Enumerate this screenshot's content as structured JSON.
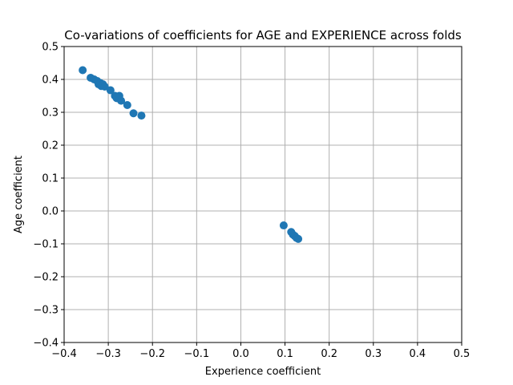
{
  "chart_data": {
    "type": "scatter",
    "title": "Co-variations of coefficients for AGE and EXPERIENCE across folds",
    "xlabel": "Experience coefficient",
    "ylabel": "Age coefficient",
    "xlim": [
      -0.4,
      0.5
    ],
    "ylim": [
      -0.4,
      0.5
    ],
    "xticks": [
      -0.4,
      -0.3,
      -0.2,
      -0.1,
      0.0,
      0.1,
      0.2,
      0.3,
      0.4,
      0.5
    ],
    "yticks": [
      -0.4,
      -0.3,
      -0.2,
      -0.1,
      0.0,
      0.1,
      0.2,
      0.3,
      0.4,
      0.5
    ],
    "xtick_labels": [
      "−0.4",
      "−0.3",
      "−0.2",
      "−0.1",
      "0.0",
      "0.1",
      "0.2",
      "0.3",
      "0.4",
      "0.5"
    ],
    "ytick_labels": [
      "−0.4",
      "−0.3",
      "−0.2",
      "−0.1",
      "0.0",
      "0.1",
      "0.2",
      "0.3",
      "0.4",
      "0.5"
    ],
    "grid": true,
    "marker_color": "#1f77b4",
    "points": [
      {
        "x": -0.358,
        "y": 0.428
      },
      {
        "x": -0.34,
        "y": 0.405
      },
      {
        "x": -0.332,
        "y": 0.4
      },
      {
        "x": -0.325,
        "y": 0.395
      },
      {
        "x": -0.322,
        "y": 0.385
      },
      {
        "x": -0.318,
        "y": 0.389
      },
      {
        "x": -0.316,
        "y": 0.38
      },
      {
        "x": -0.312,
        "y": 0.385
      },
      {
        "x": -0.308,
        "y": 0.378
      },
      {
        "x": -0.295,
        "y": 0.367
      },
      {
        "x": -0.285,
        "y": 0.35
      },
      {
        "x": -0.281,
        "y": 0.343
      },
      {
        "x": -0.275,
        "y": 0.35
      },
      {
        "x": -0.271,
        "y": 0.335
      },
      {
        "x": -0.257,
        "y": 0.322
      },
      {
        "x": -0.243,
        "y": 0.297
      },
      {
        "x": -0.225,
        "y": 0.29
      },
      {
        "x": 0.097,
        "y": -0.044
      },
      {
        "x": 0.114,
        "y": -0.064
      },
      {
        "x": 0.118,
        "y": -0.072
      },
      {
        "x": 0.122,
        "y": -0.076
      },
      {
        "x": 0.126,
        "y": -0.082
      },
      {
        "x": 0.13,
        "y": -0.085
      }
    ]
  }
}
